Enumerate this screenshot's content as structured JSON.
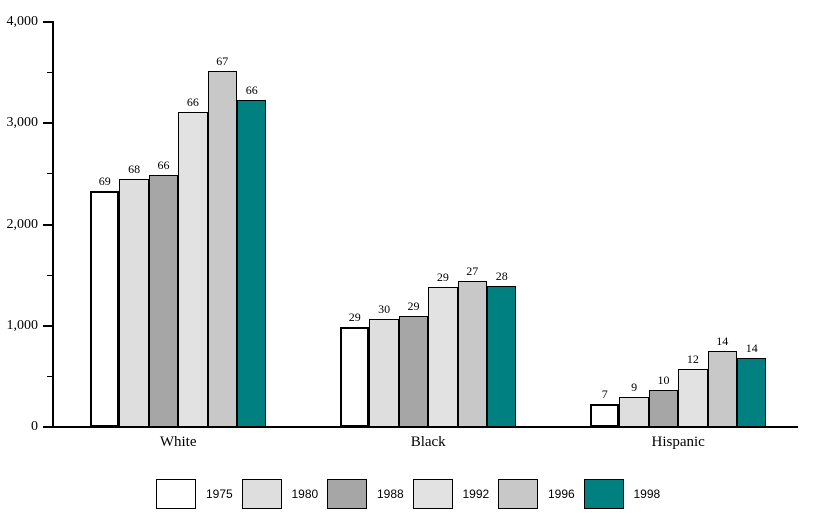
{
  "chart_data": {
    "type": "bar",
    "title": "",
    "categories": [
      "White",
      "Black",
      "Hispanic"
    ],
    "series": [
      {
        "name": "1975",
        "color": "#FFFFFF",
        "values": [
          2330,
          990,
          230
        ],
        "bar_labels": [
          "69",
          "29",
          "7"
        ]
      },
      {
        "name": "1980",
        "color": "#DEDEDE",
        "values": [
          2450,
          1070,
          300
        ],
        "bar_labels": [
          "68",
          "30",
          "9"
        ]
      },
      {
        "name": "1988",
        "color": "#A6A6A6",
        "values": [
          2490,
          1100,
          370
        ],
        "bar_labels": [
          "66",
          "29",
          "10"
        ]
      },
      {
        "name": "1992",
        "color": "#E2E2E2",
        "values": [
          3110,
          1380,
          570
        ],
        "bar_labels": [
          "66",
          "29",
          "12"
        ]
      },
      {
        "name": "1996",
        "color": "#C8C8C8",
        "values": [
          3520,
          1440,
          750
        ],
        "bar_labels": [
          "67",
          "27",
          "14"
        ]
      },
      {
        "name": "1998",
        "color": "#008080",
        "values": [
          3230,
          1390,
          680
        ],
        "bar_labels": [
          "66",
          "28",
          "14"
        ]
      }
    ],
    "ylim": [
      0,
      4000
    ],
    "y_tick_interval": 1000,
    "y_minor_tick_interval": 500,
    "y_tick_labels": [
      "0",
      "1,000",
      "2,000",
      "3,000",
      "4,000"
    ],
    "xlabel": "",
    "ylabel": "",
    "grid": false,
    "legend_position": "bottom",
    "axis_color": "#000000"
  }
}
